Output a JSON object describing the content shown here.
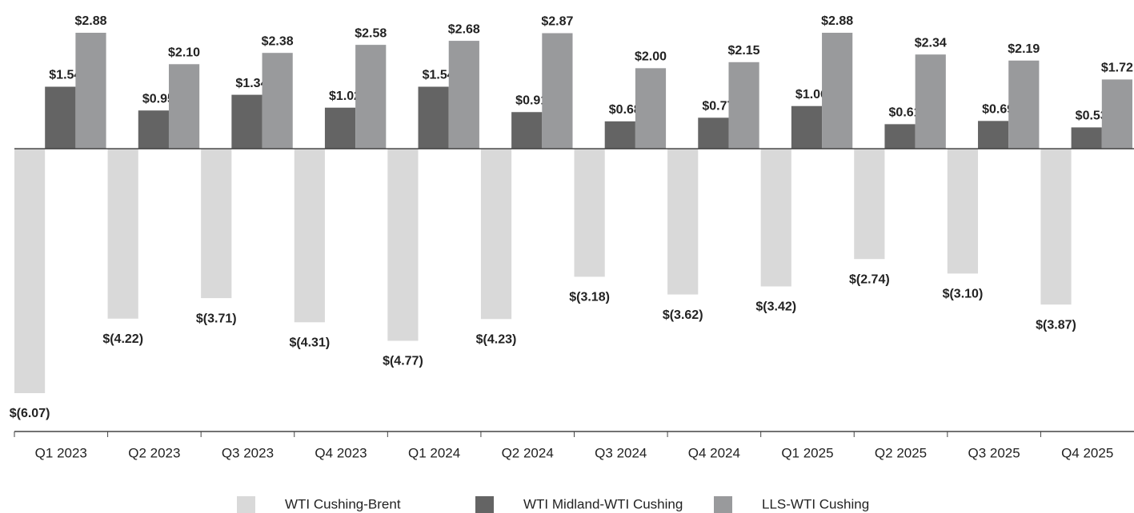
{
  "chart_data": {
    "type": "bar",
    "categories": [
      "Q1 2023",
      "Q2 2023",
      "Q3 2023",
      "Q4 2023",
      "Q1 2024",
      "Q2 2024",
      "Q3 2024",
      "Q4 2024",
      "Q1 2025",
      "Q2 2025",
      "Q3 2025",
      "Q4 2025"
    ],
    "series": [
      {
        "name": "WTI Cushing-Brent",
        "color": "#d9d9d9",
        "values": [
          -6.07,
          -4.22,
          -3.71,
          -4.31,
          -4.77,
          -4.23,
          -3.18,
          -3.62,
          -3.42,
          -2.74,
          -3.1,
          -3.87
        ],
        "value_labels": [
          "$(6.07)",
          "$(4.22)",
          "$(3.71)",
          "$(4.31)",
          "$(4.77)",
          "$(4.23)",
          "$(3.18)",
          "$(3.62)",
          "$(3.42)",
          "$(2.74)",
          "$(3.10)",
          "$(3.87)"
        ]
      },
      {
        "name": "WTI Midland-WTI Cushing",
        "color": "#646464",
        "values": [
          1.54,
          0.95,
          1.34,
          1.02,
          1.54,
          0.91,
          0.68,
          0.77,
          1.06,
          0.61,
          0.69,
          0.53
        ],
        "value_labels": [
          "$1.54",
          "$0.95",
          "$1.34",
          "$1.02",
          "$1.54",
          "$0.91",
          "$0.68",
          "$0.77",
          "$1.06",
          "$0.61",
          "$0.69",
          "$0.53"
        ]
      },
      {
        "name": "LLS-WTI Cushing",
        "color": "#999a9c",
        "values": [
          2.88,
          2.1,
          2.38,
          2.58,
          2.68,
          2.87,
          2.0,
          2.15,
          2.88,
          2.34,
          2.19,
          1.72
        ],
        "value_labels": [
          "$2.88",
          "$2.10",
          "$2.38",
          "$2.58",
          "$2.68",
          "$2.87",
          "$2.00",
          "$2.15",
          "$2.88",
          "$2.34",
          "$2.19",
          "$1.72"
        ]
      }
    ],
    "legend": "bottom"
  }
}
